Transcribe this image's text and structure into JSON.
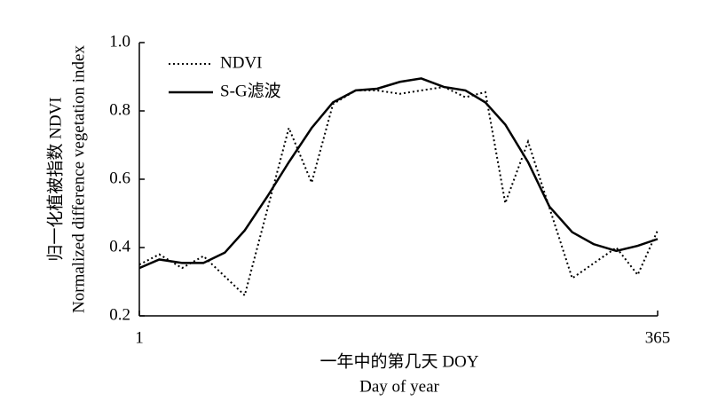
{
  "chart_data": {
    "type": "line",
    "x_label": "一年中的第几天 DOY",
    "x_label_en": "Day of year",
    "y_label": "归一化植被指数 NDVI",
    "y_label_en": "Normalized difference vegetation index",
    "xlim": [
      1,
      365
    ],
    "xticks": [
      1,
      365
    ],
    "ylim": [
      0.2,
      1.0
    ],
    "yticks": [
      0.2,
      0.4,
      0.6,
      0.8,
      {
        "value": 1.0,
        "label": "1.0"
      }
    ],
    "legend": "upper left",
    "series": [
      {
        "name": "NDVI",
        "color": "#000000",
        "dash": "dotted",
        "x": [
          1,
          15,
          31,
          46,
          75,
          106,
          122,
          137,
          153,
          168,
          184,
          199,
          215,
          230,
          244,
          258,
          274,
          305,
          336,
          351,
          365
        ],
        "values": [
          0.35,
          0.38,
          0.34,
          0.375,
          0.26,
          0.75,
          0.59,
          0.82,
          0.86,
          0.86,
          0.85,
          0.86,
          0.87,
          0.84,
          0.855,
          0.53,
          0.71,
          0.31,
          0.4,
          0.32,
          0.45
        ]
      },
      {
        "name": "S-G滤波",
        "color": "#000000",
        "dash": "solid",
        "x": [
          1,
          15,
          31,
          46,
          61,
          75,
          91,
          106,
          122,
          137,
          153,
          168,
          184,
          199,
          215,
          230,
          244,
          258,
          274,
          289,
          305,
          320,
          336,
          351,
          365
        ],
        "values": [
          0.34,
          0.365,
          0.355,
          0.355,
          0.385,
          0.45,
          0.55,
          0.65,
          0.75,
          0.825,
          0.86,
          0.865,
          0.885,
          0.895,
          0.87,
          0.86,
          0.825,
          0.76,
          0.65,
          0.52,
          0.445,
          0.41,
          0.39,
          0.405,
          0.425
        ]
      }
    ]
  }
}
